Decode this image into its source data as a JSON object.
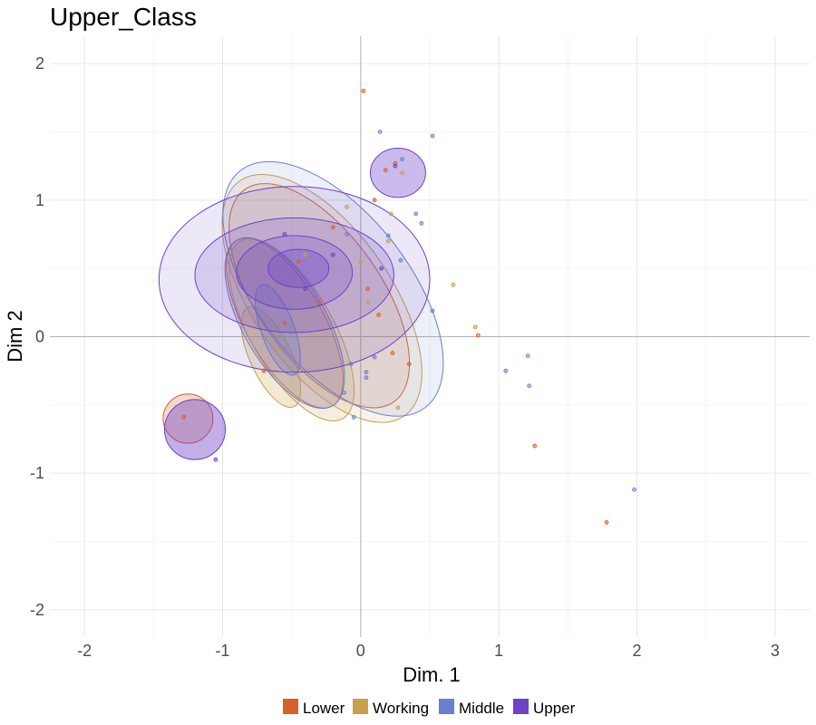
{
  "chart_data": {
    "type": "scatter",
    "title": "Upper_Class",
    "xlabel": "Dim. 1",
    "ylabel": "Dim 2",
    "xlim": [
      -2.25,
      3.25
    ],
    "ylim": [
      -2.2,
      2.2
    ],
    "x_ticks": [
      -2,
      -1,
      0,
      1,
      2,
      3
    ],
    "y_ticks": [
      -2,
      -1,
      0,
      1,
      2
    ],
    "x_tick_labels": [
      "-2",
      "-1",
      "0",
      "1",
      "2",
      "3"
    ],
    "y_tick_labels": [
      "-2",
      "-1",
      "0",
      "1",
      "2"
    ],
    "grid": true,
    "legend_position": "bottom",
    "series": [
      {
        "name": "Lower",
        "color": "#D95F2B",
        "points": [
          [
            0.02,
            1.8
          ],
          [
            1.78,
            -1.36
          ],
          [
            1.26,
            -0.8
          ],
          [
            0.85,
            0.01
          ],
          [
            -1.28,
            -0.59
          ],
          [
            0.25,
            1.27
          ],
          [
            0.1,
            1.0
          ],
          [
            -0.3,
            0.25
          ],
          [
            0.23,
            -0.12
          ],
          [
            0.35,
            -0.2
          ],
          [
            0.13,
            0.16
          ],
          [
            -0.55,
            0.1
          ],
          [
            -0.7,
            -0.25
          ],
          [
            0.18,
            1.22
          ],
          [
            -0.2,
            0.8
          ],
          [
            -0.45,
            0.55
          ],
          [
            0.05,
            0.35
          ]
        ],
        "density_levels": [
          {
            "cx": -0.3,
            "cy": 0.3,
            "rx": 0.45,
            "ry": 0.95,
            "angle": 35
          },
          {
            "cx": -0.55,
            "cy": 0.1,
            "rx": 0.28,
            "ry": 0.7,
            "angle": 30
          },
          {
            "cx": -1.25,
            "cy": -0.6,
            "rx": 0.18,
            "ry": 0.18,
            "angle": 0
          }
        ]
      },
      {
        "name": "Working",
        "color": "#C9A04B",
        "points": [
          [
            0.67,
            0.38
          ],
          [
            0.83,
            0.07
          ],
          [
            0.27,
            -0.52
          ],
          [
            0.3,
            1.2
          ],
          [
            -0.1,
            0.95
          ],
          [
            0.05,
            0.25
          ],
          [
            0.22,
            0.9
          ],
          [
            -0.4,
            0.6
          ],
          [
            -0.6,
            -0.1
          ],
          [
            0.2,
            0.7
          ],
          [
            0.0,
            0.55
          ]
        ],
        "density_levels": [
          {
            "cx": -0.28,
            "cy": 0.28,
            "rx": 0.5,
            "ry": 1.05,
            "angle": 35
          },
          {
            "cx": -0.5,
            "cy": 0.05,
            "rx": 0.3,
            "ry": 0.75,
            "angle": 30
          },
          {
            "cx": -0.65,
            "cy": -0.15,
            "rx": 0.15,
            "ry": 0.4,
            "angle": 25
          }
        ]
      },
      {
        "name": "Middle",
        "color": "#6A7FD0",
        "points": [
          [
            0.52,
            1.47
          ],
          [
            0.14,
            1.5
          ],
          [
            1.98,
            -1.12
          ],
          [
            1.21,
            -0.14
          ],
          [
            1.22,
            -0.36
          ],
          [
            1.05,
            -0.25
          ],
          [
            0.52,
            0.19
          ],
          [
            0.44,
            0.83
          ],
          [
            0.3,
            1.3
          ],
          [
            -0.12,
            -0.41
          ],
          [
            -0.07,
            -0.2
          ],
          [
            0.04,
            -0.26
          ],
          [
            0.04,
            -0.3
          ],
          [
            -0.05,
            -0.59
          ],
          [
            0.1,
            -0.15
          ],
          [
            0.29,
            0.56
          ],
          [
            0.2,
            0.74
          ],
          [
            0.4,
            0.9
          ],
          [
            -0.1,
            0.75
          ]
        ],
        "density_levels": [
          {
            "cx": -0.2,
            "cy": 0.35,
            "rx": 0.55,
            "ry": 1.1,
            "angle": 38
          },
          {
            "cx": -0.55,
            "cy": 0.1,
            "rx": 0.3,
            "ry": 0.7,
            "angle": 30
          },
          {
            "cx": -0.6,
            "cy": 0.05,
            "rx": 0.12,
            "ry": 0.35,
            "angle": 20
          }
        ]
      },
      {
        "name": "Upper",
        "color": "#6E41C9",
        "points": [
          [
            -0.2,
            0.6
          ],
          [
            -0.4,
            0.35
          ],
          [
            0.15,
            0.5
          ],
          [
            -0.55,
            0.75
          ],
          [
            -1.05,
            -0.9
          ],
          [
            0.25,
            1.25
          ]
        ],
        "density_levels": [
          {
            "cx": -0.48,
            "cy": 0.42,
            "rx": 0.98,
            "ry": 0.68,
            "angle": 0
          },
          {
            "cx": -0.48,
            "cy": 0.45,
            "rx": 0.72,
            "ry": 0.42,
            "angle": 0
          },
          {
            "cx": -0.48,
            "cy": 0.47,
            "rx": 0.42,
            "ry": 0.27,
            "angle": 0
          },
          {
            "cx": -0.45,
            "cy": 0.5,
            "rx": 0.22,
            "ry": 0.14,
            "angle": 0
          },
          {
            "cx": 0.27,
            "cy": 1.2,
            "rx": 0.2,
            "ry": 0.18,
            "angle": 0
          },
          {
            "cx": -1.2,
            "cy": -0.68,
            "rx": 0.22,
            "ry": 0.22,
            "angle": 0
          }
        ]
      }
    ]
  }
}
